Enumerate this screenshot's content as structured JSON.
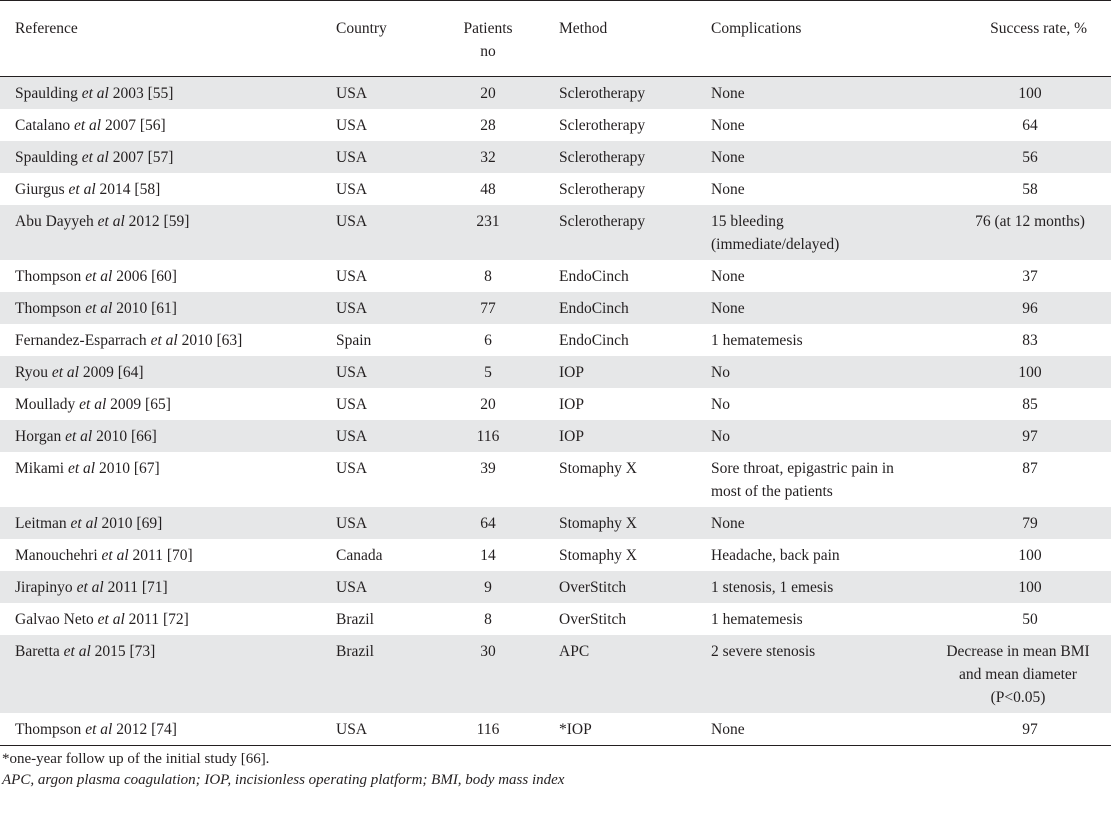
{
  "headers": {
    "reference": "Reference",
    "country": "Country",
    "patients_line1": "Patients",
    "patients_line2": "no",
    "method": "Method",
    "complications": "Complications",
    "success": "Success rate, %"
  },
  "rows": [
    {
      "author": "Spaulding",
      "etal": "et al",
      "rest": " 2003 [55]",
      "country": "USA",
      "patients": "20",
      "method": "Sclerotherapy",
      "complications": "None",
      "success": "100"
    },
    {
      "author": "Catalano",
      "etal": "et al",
      "rest": " 2007 [56]",
      "country": "USA",
      "patients": "28",
      "method": "Sclerotherapy",
      "complications": "None",
      "success": "64"
    },
    {
      "author": "Spaulding",
      "etal": "et al",
      "rest": " 2007 [57]",
      "country": "USA",
      "patients": "32",
      "method": "Sclerotherapy",
      "complications": "None",
      "success": "56"
    },
    {
      "author": "Giurgus",
      "etal": "et al",
      "rest": " 2014 [58]",
      "country": "USA",
      "patients": "48",
      "method": "Sclerotherapy",
      "complications": "None",
      "success": "58"
    },
    {
      "author": "Abu Dayyeh",
      "etal": "et al",
      "rest": " 2012 [59]",
      "country": "USA",
      "patients": "231",
      "method": "Sclerotherapy",
      "complications": "15 bleeding (immediate/delayed)",
      "success": "76 (at 12 months)"
    },
    {
      "author": "Thompson",
      "etal": "et al",
      "rest": " 2006 [60]",
      "country": "USA",
      "patients": "8",
      "method": "EndoCinch",
      "complications": "None",
      "success": "37"
    },
    {
      "author": "Thompson",
      "etal": "et al",
      "rest": " 2010 [61]",
      "country": "USA",
      "patients": "77",
      "method": "EndoCinch",
      "complications": "None",
      "success": "96"
    },
    {
      "author": "Fernandez-Esparrach",
      "etal": "et al",
      "rest": " 2010 [63]",
      "country": "Spain",
      "patients": "6",
      "method": "EndoCinch",
      "complications": "1 hematemesis",
      "success": "83"
    },
    {
      "author": "Ryou",
      "etal": "et al",
      "rest": " 2009 [64]",
      "country": "USA",
      "patients": "5",
      "method": "IOP",
      "complications": "No",
      "success": "100"
    },
    {
      "author": "Moullady",
      "etal": "et al",
      "rest": " 2009 [65]",
      "country": "USA",
      "patients": "20",
      "method": "IOP",
      "complications": "No",
      "success": "85"
    },
    {
      "author": "Horgan",
      "etal": "et al",
      "rest": " 2010 [66]",
      "country": "USA",
      "patients": "116",
      "method": "IOP",
      "complications": "No",
      "success": "97"
    },
    {
      "author": "Mikami",
      "etal": "et al",
      "rest": " 2010 [67]",
      "country": "USA",
      "patients": "39",
      "method": "Stomaphy X",
      "complications": "Sore throat, epigastric pain in most of the patients",
      "success": "87"
    },
    {
      "author": "Leitman",
      "etal": "et al",
      "rest": " 2010 [69]",
      "country": "USA",
      "patients": "64",
      "method": "Stomaphy X",
      "complications": "None",
      "success": "79"
    },
    {
      "author": "Manouchehri",
      "etal": "et al",
      "rest": " 2011 [70]",
      "country": "Canada",
      "patients": "14",
      "method": "Stomaphy X",
      "complications": "Headache, back pain",
      "success": "100"
    },
    {
      "author": "Jirapinyo",
      "etal": "et al",
      "rest": " 2011 [71]",
      "country": "USA",
      "patients": "9",
      "method": "OverStitch",
      "complications": "1 stenosis, 1 emesis",
      "success": "100"
    },
    {
      "author": "Galvao Neto",
      "etal": "et al",
      "rest": " 2011 [72]",
      "country": "Brazil",
      "patients": "8",
      "method": "OverStitch",
      "complications": "1 hematemesis",
      "success": "50"
    },
    {
      "author": "Baretta",
      "etal": "et al",
      "rest": " 2015 [73]",
      "country": "Brazil",
      "patients": "30",
      "method": "APC",
      "complications": "2 severe stenosis",
      "success": "Decrease in mean BMI and mean diameter (P<0.05)"
    },
    {
      "author": "Thompson",
      "etal": "et al",
      "rest": " 2012 [74]",
      "country": "USA",
      "patients": "116",
      "method": "*IOP",
      "complications": "None",
      "success": "97"
    }
  ],
  "footnote": "*one-year follow up of the initial study [66].",
  "abbreviations": "APC, argon plasma coagulation; IOP, incisionless operating platform; BMI, body mass index"
}
